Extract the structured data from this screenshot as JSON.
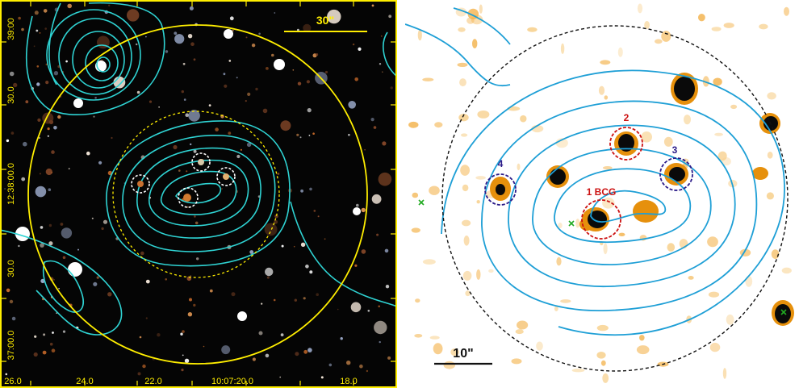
{
  "left_panel": {
    "scale_bar_label": "30\"",
    "dec_ticks": [
      "39:00",
      "30.0",
      "12:38:00.0",
      "30.0",
      "37:00.0"
    ],
    "ra_ticks": [
      "26.0",
      "24.0",
      "22.0",
      "10:07:20.0",
      "18.0"
    ],
    "colors": {
      "contour": "#2fd3d3",
      "circle": "#ffee00",
      "frame": "#ffee00",
      "member_circle": "#ffffff"
    }
  },
  "right_panel": {
    "scale_bar_label": "10\"",
    "members": [
      {
        "label": "1 BCG",
        "color": "#cc1111"
      },
      {
        "label": "2",
        "color": "#cc1111"
      },
      {
        "label": "3",
        "color": "#2a1a88"
      },
      {
        "label": "4",
        "color": "#2a1a88"
      }
    ],
    "colors": {
      "contour": "#1e9fd6",
      "circle": "#111111",
      "source": "#e6900c",
      "marker": "#22aa22"
    }
  }
}
